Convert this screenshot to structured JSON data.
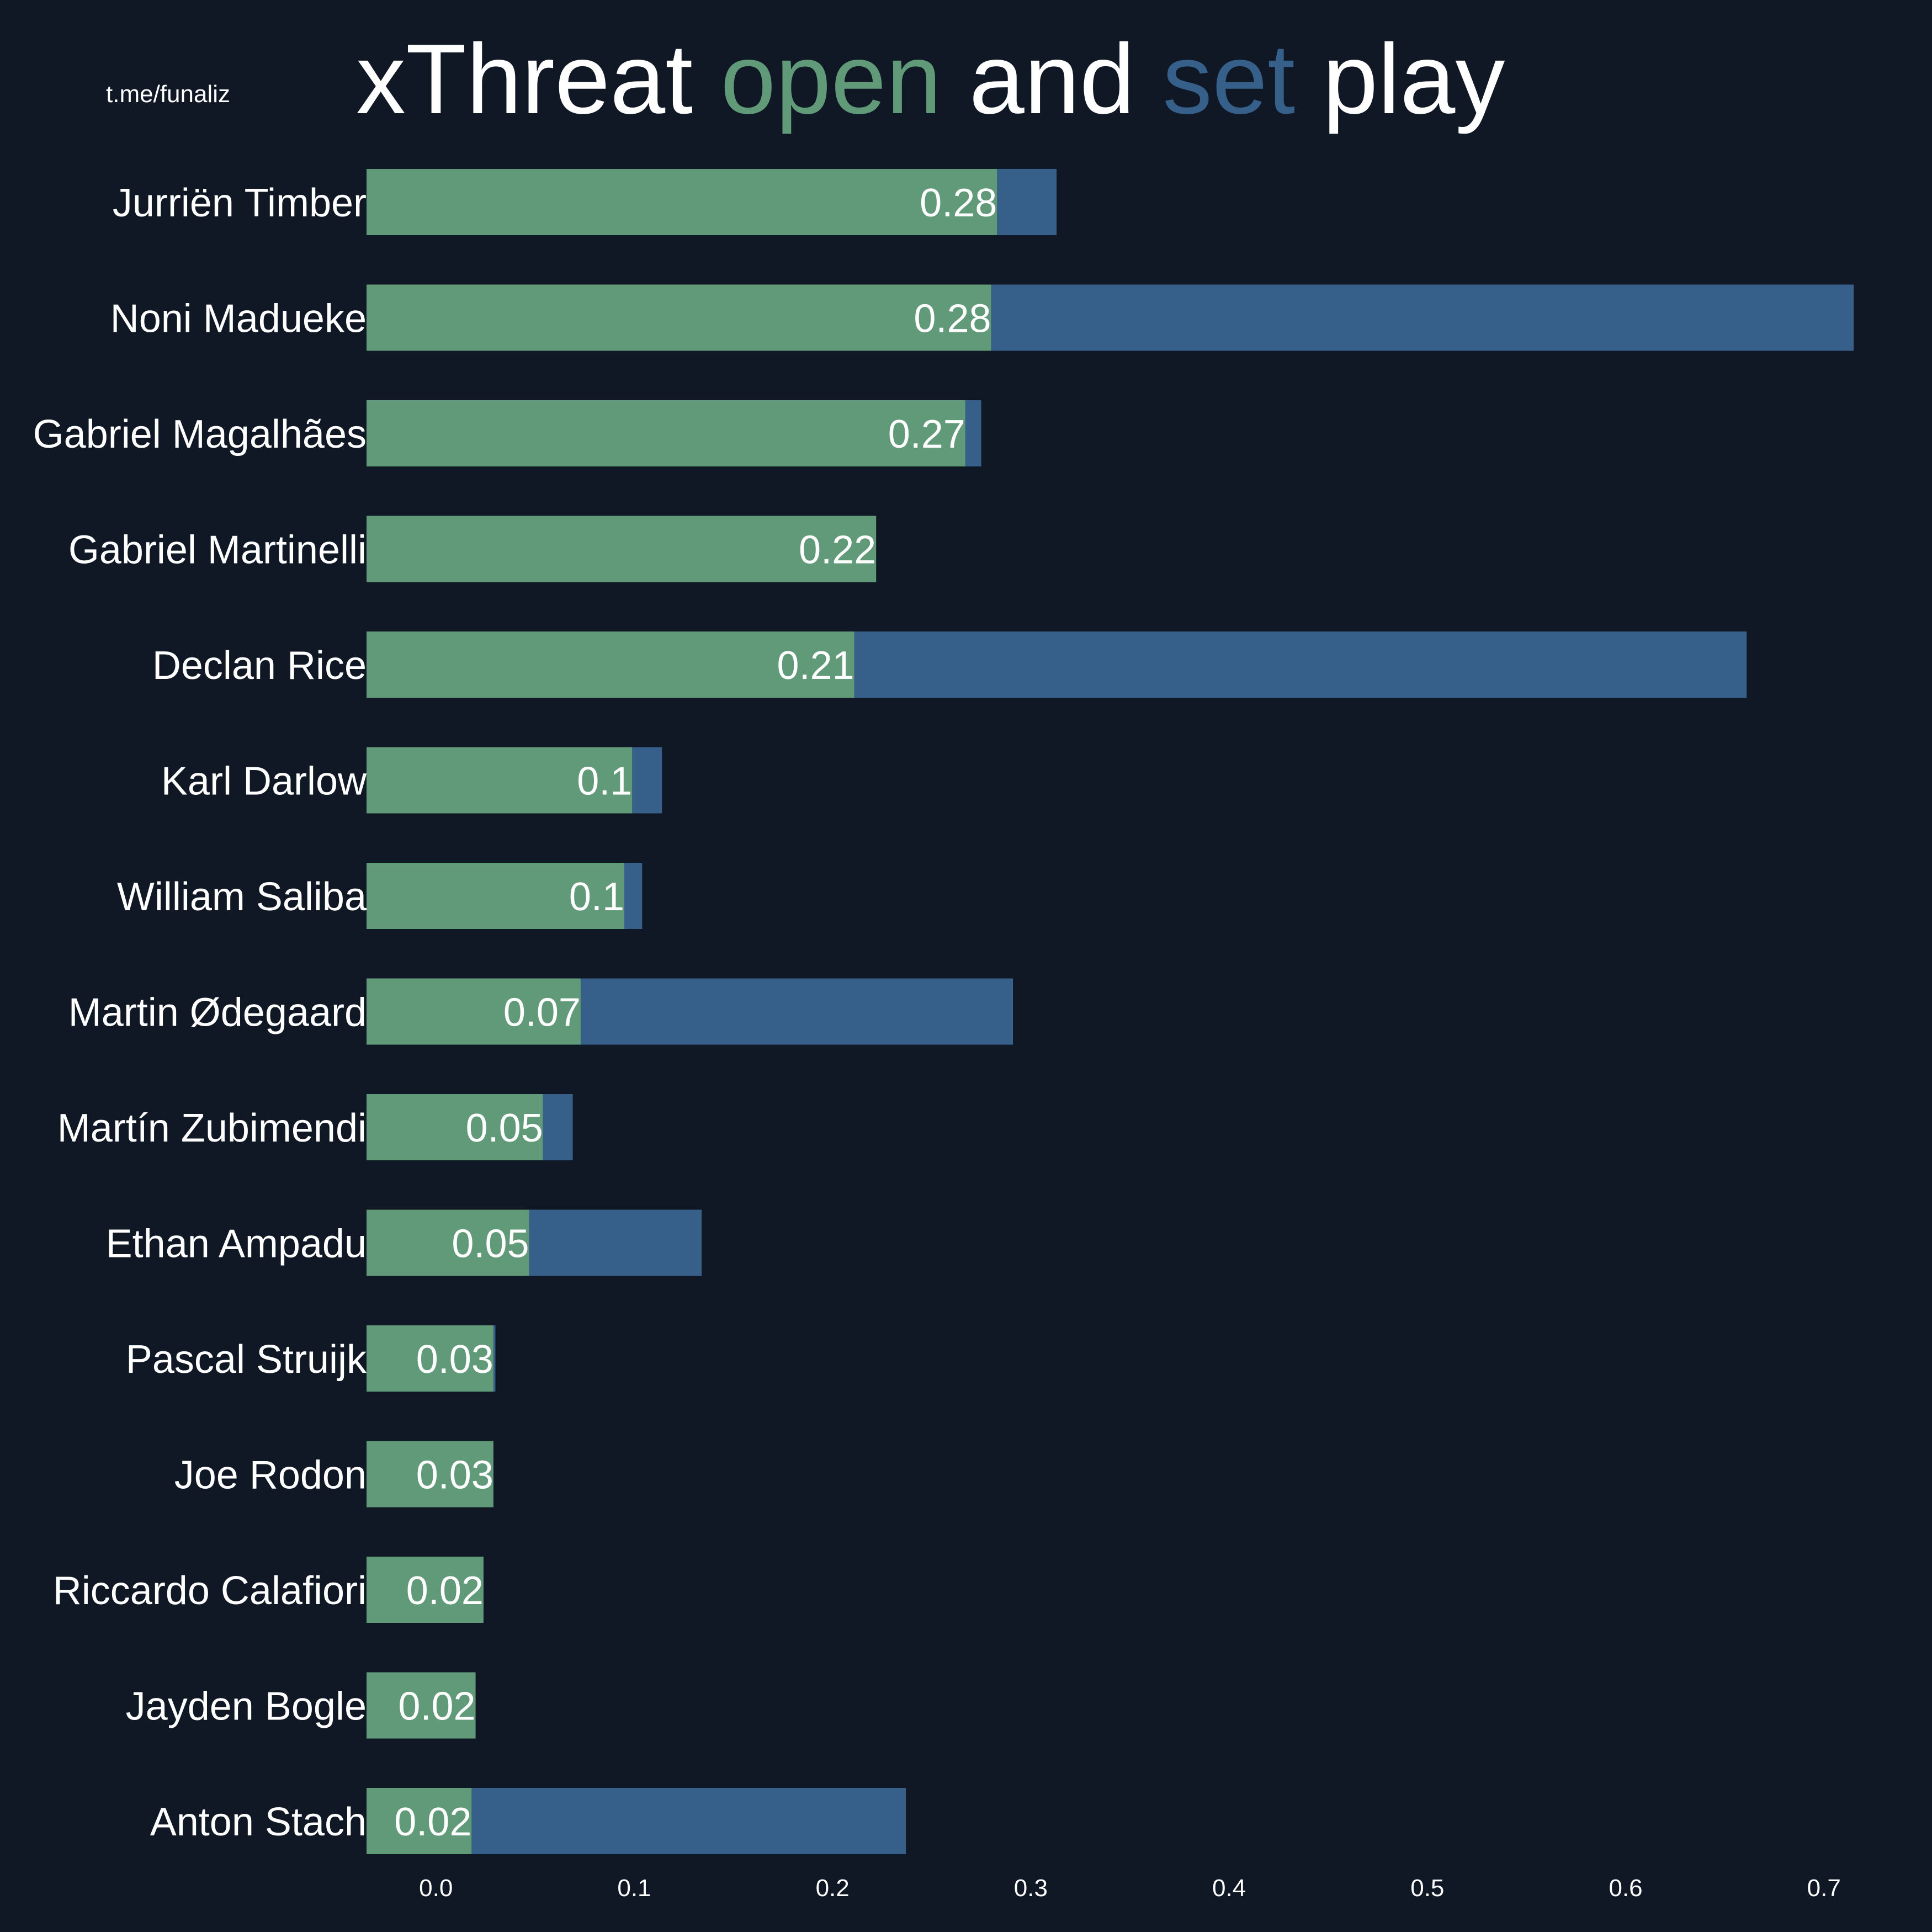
{
  "watermark": "t.me/funaliz",
  "title": {
    "parts": [
      {
        "text": "xThreat ",
        "color": "#ffffff"
      },
      {
        "text": "open",
        "color": "#619a78"
      },
      {
        "text": " and ",
        "color": "#ffffff"
      },
      {
        "text": "set",
        "color": "#36608a"
      },
      {
        "text": " play",
        "color": "#ffffff"
      }
    ]
  },
  "colors": {
    "background": "#0f1824",
    "open": "#619a78",
    "set": "#36608a",
    "text": "#ffffff"
  },
  "chart_data": {
    "type": "bar",
    "orientation": "horizontal",
    "stacked": true,
    "title": "xThreat open and set play",
    "xlabel": "",
    "ylabel": "",
    "xlim": [
      -0.035,
      0.735
    ],
    "xticks": [
      "0.0",
      "0.1",
      "0.2",
      "0.3",
      "0.4",
      "0.5",
      "0.6",
      "0.7"
    ],
    "grid": false,
    "categories": [
      "Jurriën Timber",
      "Noni Madueke",
      "Gabriel Magalhães",
      "Gabriel Martinelli",
      "Declan Rice",
      "Karl Darlow",
      "William Saliba",
      "Martin Ødegaard",
      "Martín Zubimendi",
      "Ethan Ampadu",
      "Pascal Struijk",
      "Joe Rodon",
      "Riccardo Calafiori",
      "Jayden Bogle",
      "Anton Stach"
    ],
    "series": [
      {
        "key": "open",
        "values": [
          0.283,
          0.28,
          0.267,
          0.222,
          0.211,
          0.099,
          0.095,
          0.073,
          0.054,
          0.047,
          0.029,
          0.029,
          0.024,
          0.02,
          0.018
        ]
      },
      {
        "key": "set",
        "values": [
          0.03,
          0.435,
          0.008,
          0.0,
          0.45,
          0.015,
          0.009,
          0.218,
          0.015,
          0.087,
          0.001,
          0.0,
          0.0,
          0.0,
          0.219
        ]
      }
    ],
    "data_labels": [
      "0.28",
      "0.28",
      "0.27",
      "0.22",
      "0.21",
      "0.1",
      "0.1",
      "0.07",
      "0.05",
      "0.05",
      "0.03",
      "0.03",
      "0.02",
      "0.02",
      "0.02"
    ]
  }
}
